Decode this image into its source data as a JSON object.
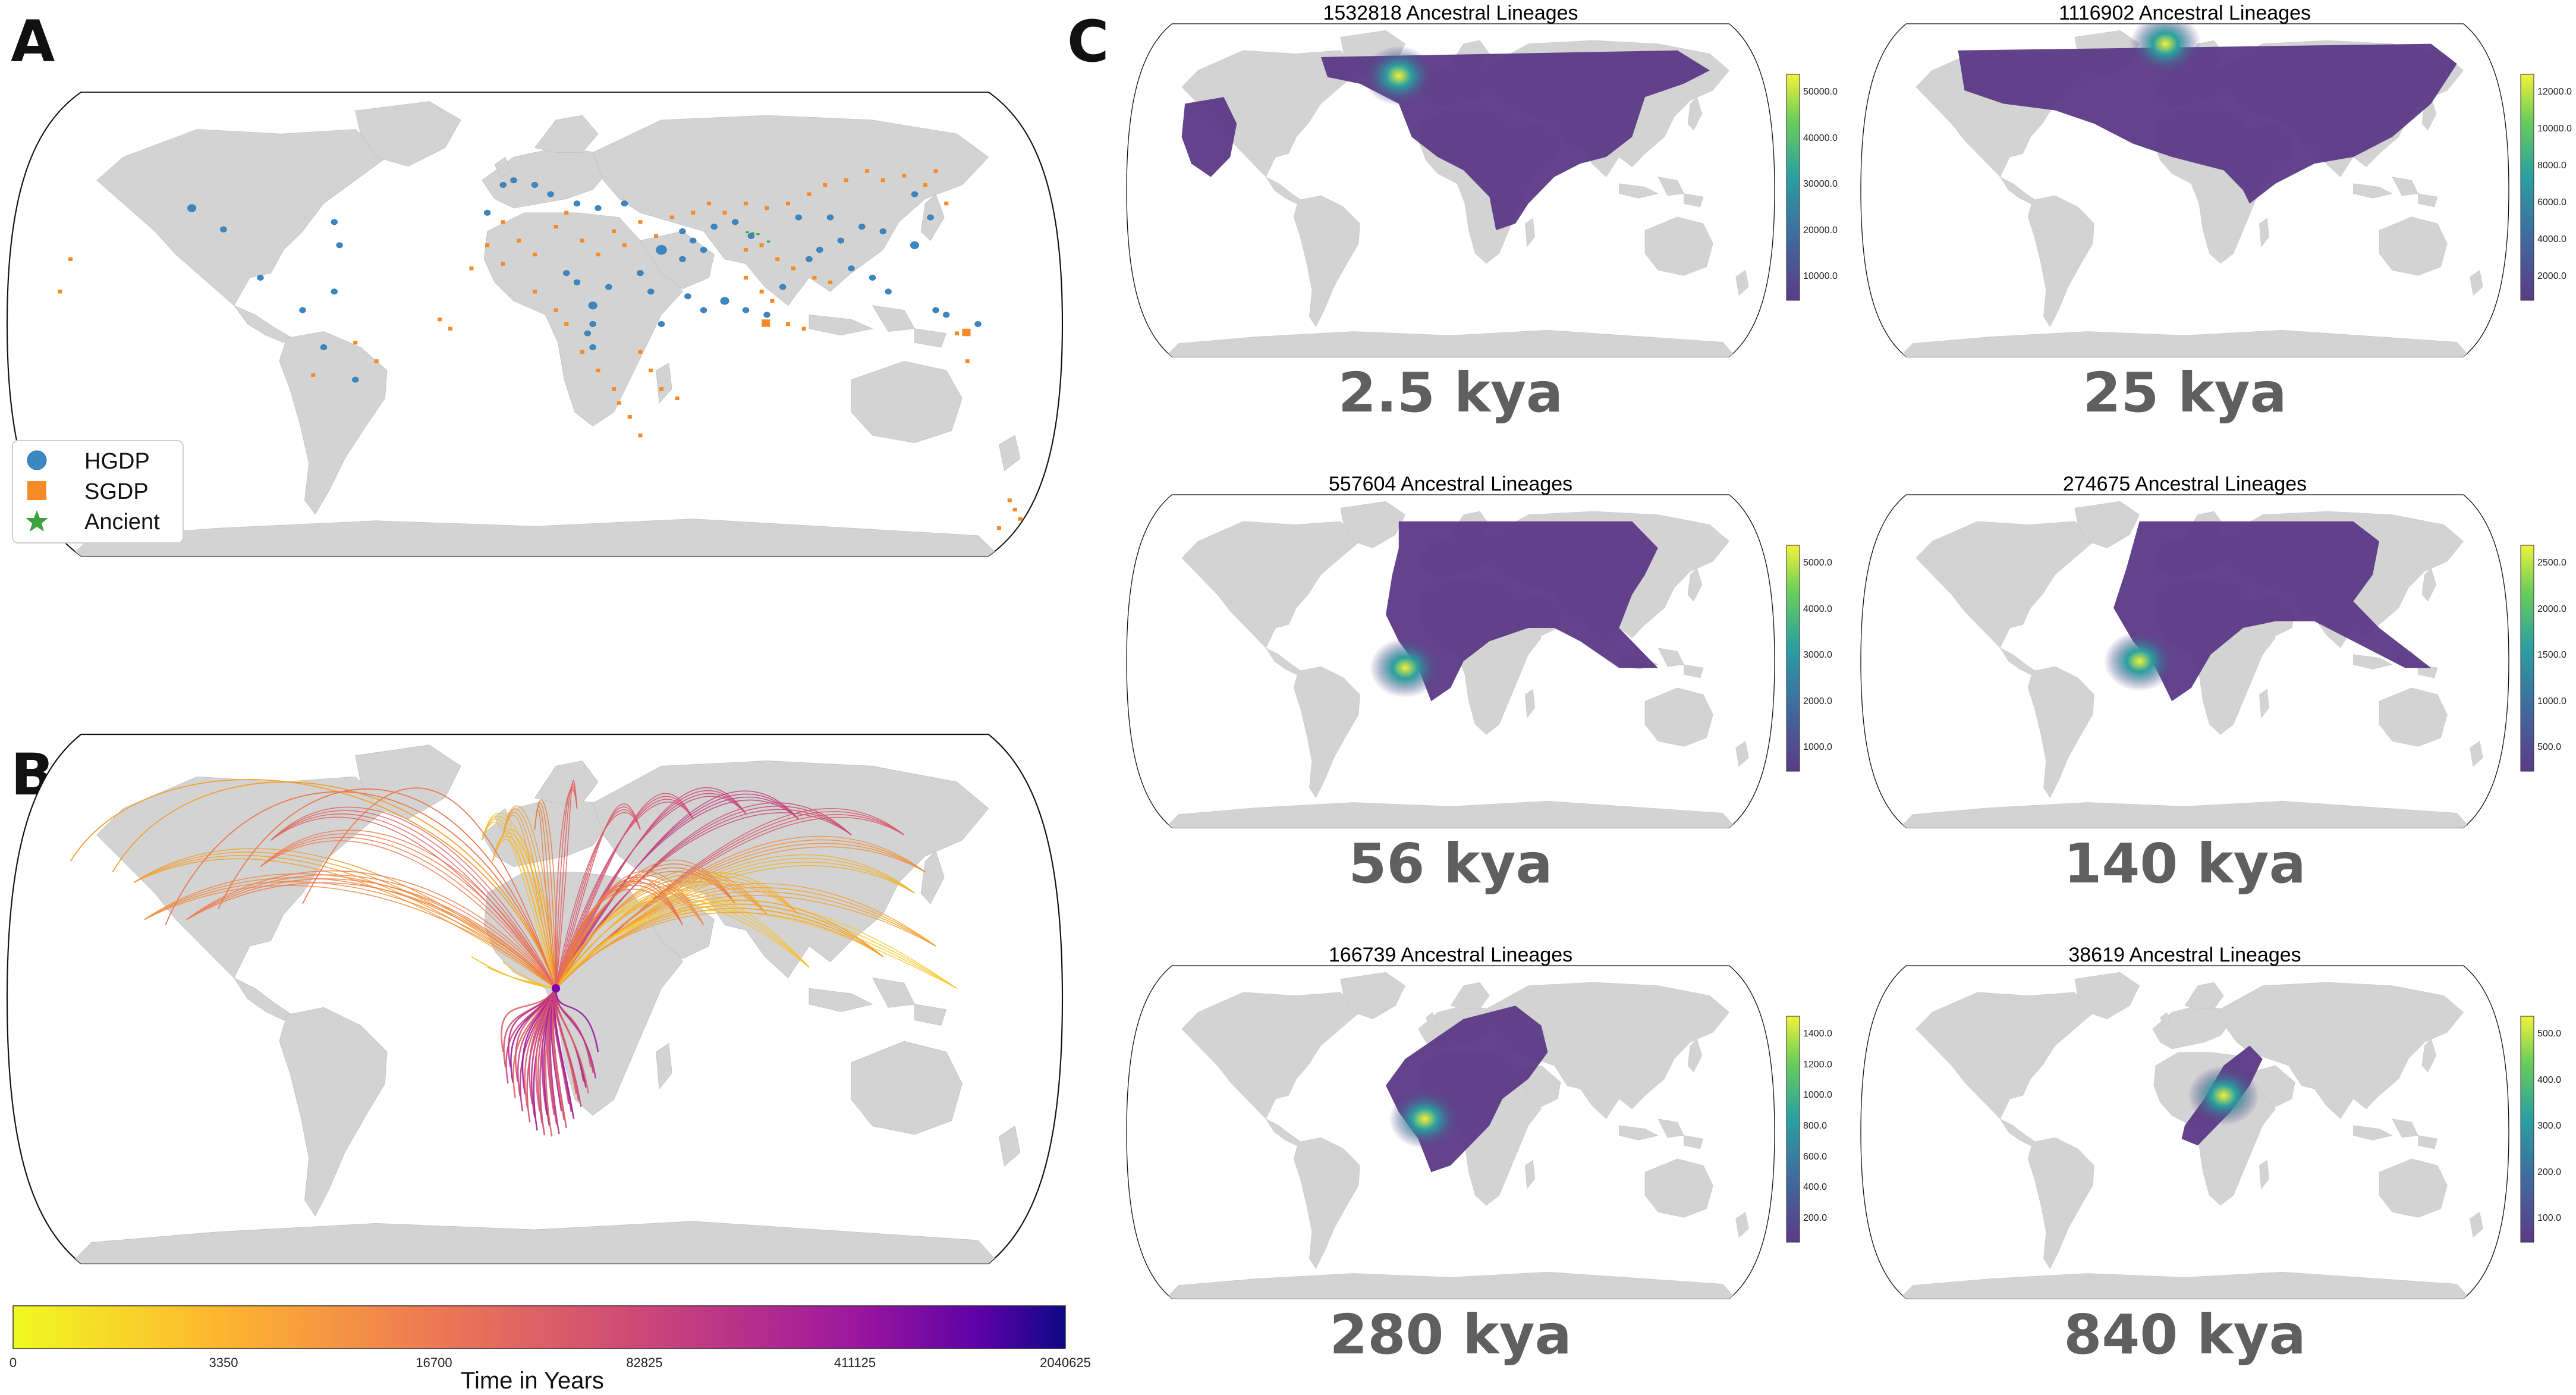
{
  "panels": {
    "a": {
      "letter": "A"
    },
    "b": {
      "letter": "B"
    },
    "c": {
      "letter": "C"
    }
  },
  "legend": {
    "items": [
      {
        "label": "HGDP",
        "marker": "circle",
        "color": "#3a87c2"
      },
      {
        "label": "SGDP",
        "marker": "square",
        "color": "#f58a26"
      },
      {
        "label": "Ancient",
        "marker": "star",
        "color": "#3ca33a"
      }
    ]
  },
  "colorbar_time": {
    "label": "Time in Years",
    "ticks": [
      "0",
      "3350",
      "16700",
      "82825",
      "411125",
      "2040625"
    ],
    "colormap": "plasma_r"
  },
  "maps": [
    {
      "title": "1532818 Ancestral Lineages",
      "kya": "2.5 kya",
      "ticks": [
        "50000.0",
        "40000.0",
        "30000.0",
        "20000.0",
        "10000.0"
      ]
    },
    {
      "title": "1116902 Ancestral Lineages",
      "kya": "25 kya",
      "ticks": [
        "12000.0",
        "10000.0",
        "8000.0",
        "6000.0",
        "4000.0",
        "2000.0"
      ]
    },
    {
      "title": "557604 Ancestral Lineages",
      "kya": "56 kya",
      "ticks": [
        "5000.0",
        "4000.0",
        "3000.0",
        "2000.0",
        "1000.0"
      ]
    },
    {
      "title": "274675 Ancestral Lineages",
      "kya": "140 kya",
      "ticks": [
        "2500.0",
        "2000.0",
        "1500.0",
        "1000.0",
        "500.0"
      ]
    },
    {
      "title": "166739 Ancestral Lineages",
      "kya": "280 kya",
      "ticks": [
        "1400.0",
        "1200.0",
        "1000.0",
        "800.0",
        "600.0",
        "400.0",
        "200.0"
      ]
    },
    {
      "title": "38619 Ancestral Lineages",
      "kya": "840 kya",
      "ticks": [
        "500.0",
        "400.0",
        "300.0",
        "200.0",
        "100.0"
      ]
    }
  ],
  "colors": {
    "land": "#d3d3d3",
    "density_low": "#5b3a86",
    "density_mid": "#2aa0a0",
    "density_high": "#f2f23a"
  }
}
